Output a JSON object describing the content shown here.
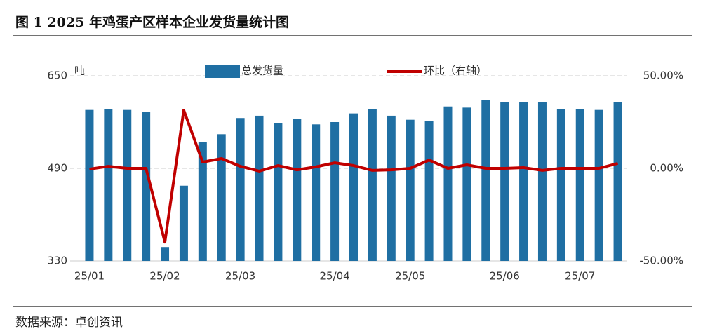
{
  "chart_data": {
    "type": "bar_line",
    "title": "图 1 2025 年鸡蛋产区样本企业发货量统计图",
    "source": "数据来源：卓创资讯",
    "ylabel": "吨",
    "categories": [
      "25/01",
      null,
      null,
      null,
      "25/02",
      null,
      null,
      null,
      "25/03",
      null,
      null,
      null,
      null,
      "25/04",
      null,
      null,
      null,
      "25/05",
      null,
      null,
      null,
      null,
      "25/06",
      null,
      null,
      null,
      "25/07",
      null,
      null
    ],
    "series": [
      {
        "name": "总发货量",
        "color": "#1f6fa3",
        "values": [
          591,
          593,
          591,
          587,
          354,
          460,
          535,
          549,
          577,
          581,
          568,
          576,
          566,
          570,
          585,
          592,
          581,
          574,
          572,
          597,
          595,
          608,
          604,
          604,
          604,
          593,
          592,
          591,
          604
        ]
      },
      {
        "name": "环比（右轴）",
        "color": "#c00000",
        "axis": "y2",
        "values": [
          -0.4,
          1.1,
          0,
          0,
          -39.8,
          31.4,
          3.4,
          5.3,
          1.1,
          -1.5,
          1.5,
          -0.8,
          0.8,
          3.0,
          1.5,
          -1.1,
          -0.8,
          0,
          4.5,
          0,
          1.9,
          0,
          0,
          0.4,
          -1.1,
          0,
          0,
          0,
          2.7
        ]
      }
    ],
    "ylim": [
      330,
      650
    ],
    "yticks": [
      330,
      490,
      650
    ],
    "y2lim": [
      -50,
      50
    ],
    "y2ticks": [
      {
        "value": -50,
        "label": "-50.00%"
      },
      {
        "value": 0,
        "label": "0.00%"
      },
      {
        "value": 50,
        "label": "50.00%"
      }
    ],
    "grid": true
  }
}
